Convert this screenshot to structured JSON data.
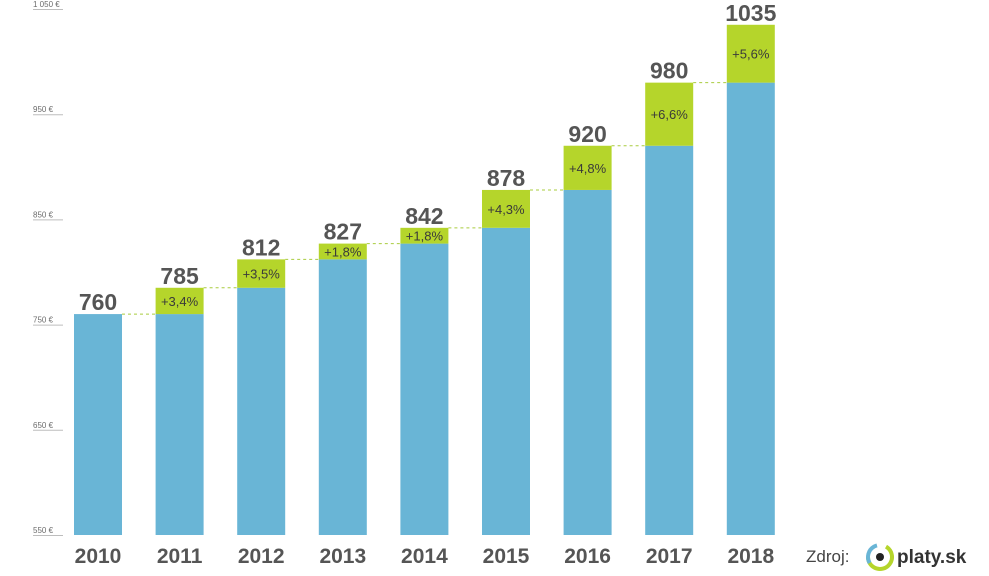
{
  "chart_data": {
    "type": "bar",
    "title": "",
    "xlabel": "",
    "ylabel": "",
    "categories": [
      "2010",
      "2011",
      "2012",
      "2013",
      "2014",
      "2015",
      "2016",
      "2017",
      "2018"
    ],
    "values": [
      760,
      785,
      812,
      827,
      842,
      878,
      920,
      980,
      1035
    ],
    "value_labels": [
      "760",
      "785",
      "812",
      "827",
      "842",
      "878",
      "920",
      "980",
      "1035"
    ],
    "growth_labels": [
      "",
      "+3,4%",
      "+3,5%",
      "+1,8%",
      "+1,8%",
      "+4,3%",
      "+4,8%",
      "+6,6%",
      "+5,6%"
    ],
    "ylim": [
      550,
      1050
    ],
    "y_ticks": [
      {
        "value": 550,
        "label": "550 €"
      },
      {
        "value": 650,
        "label": "650 €"
      },
      {
        "value": 750,
        "label": "750 €"
      },
      {
        "value": 850,
        "label": "850 €"
      },
      {
        "value": 950,
        "label": "950 €"
      },
      {
        "value": 1050,
        "label": "1 050 €"
      }
    ],
    "grid": false,
    "legend": "none",
    "colors": {
      "base": "#69b5d6",
      "increase": "#b5d52b",
      "connector": "#a9cc3f",
      "text": "#555555"
    }
  },
  "source": {
    "label": "Zdroj:",
    "brand": "platy.sk"
  }
}
